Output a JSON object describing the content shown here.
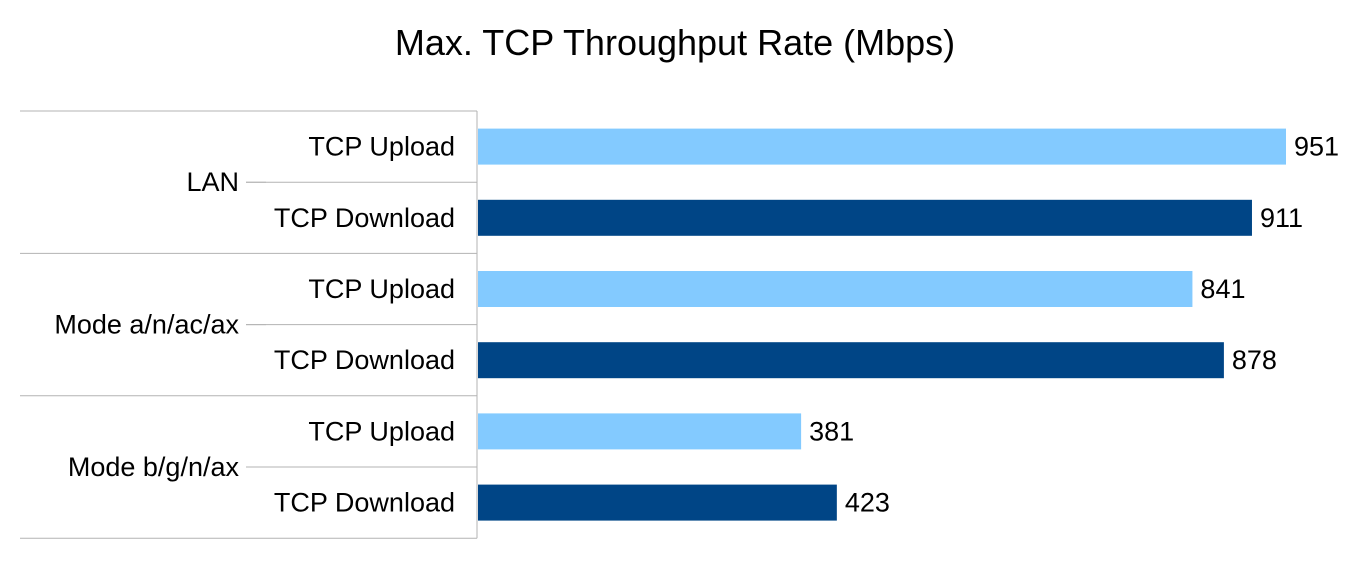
{
  "chart_data": {
    "type": "bar",
    "orientation": "horizontal",
    "title": "Max. TCP Throughput Rate (Mbps)",
    "groups": [
      {
        "label": "LAN",
        "bars": [
          {
            "label": "TCP Upload",
            "value": 951,
            "series": "upload"
          },
          {
            "label": "TCP Download",
            "value": 911,
            "series": "download"
          }
        ]
      },
      {
        "label": "Mode a/n/ac/ax",
        "bars": [
          {
            "label": "TCP Upload",
            "value": 841,
            "series": "upload"
          },
          {
            "label": "TCP Download",
            "value": 878,
            "series": "download"
          }
        ]
      },
      {
        "label": "Mode b/g/n/ax",
        "bars": [
          {
            "label": "TCP Upload",
            "value": 381,
            "series": "upload"
          },
          {
            "label": "TCP Download",
            "value": 423,
            "series": "download"
          }
        ]
      }
    ],
    "xlim": [
      0,
      951
    ],
    "grid": false,
    "legend": "none",
    "colors": {
      "upload": "#83caff",
      "download": "#004586",
      "axis": "#b3b3b3"
    }
  }
}
